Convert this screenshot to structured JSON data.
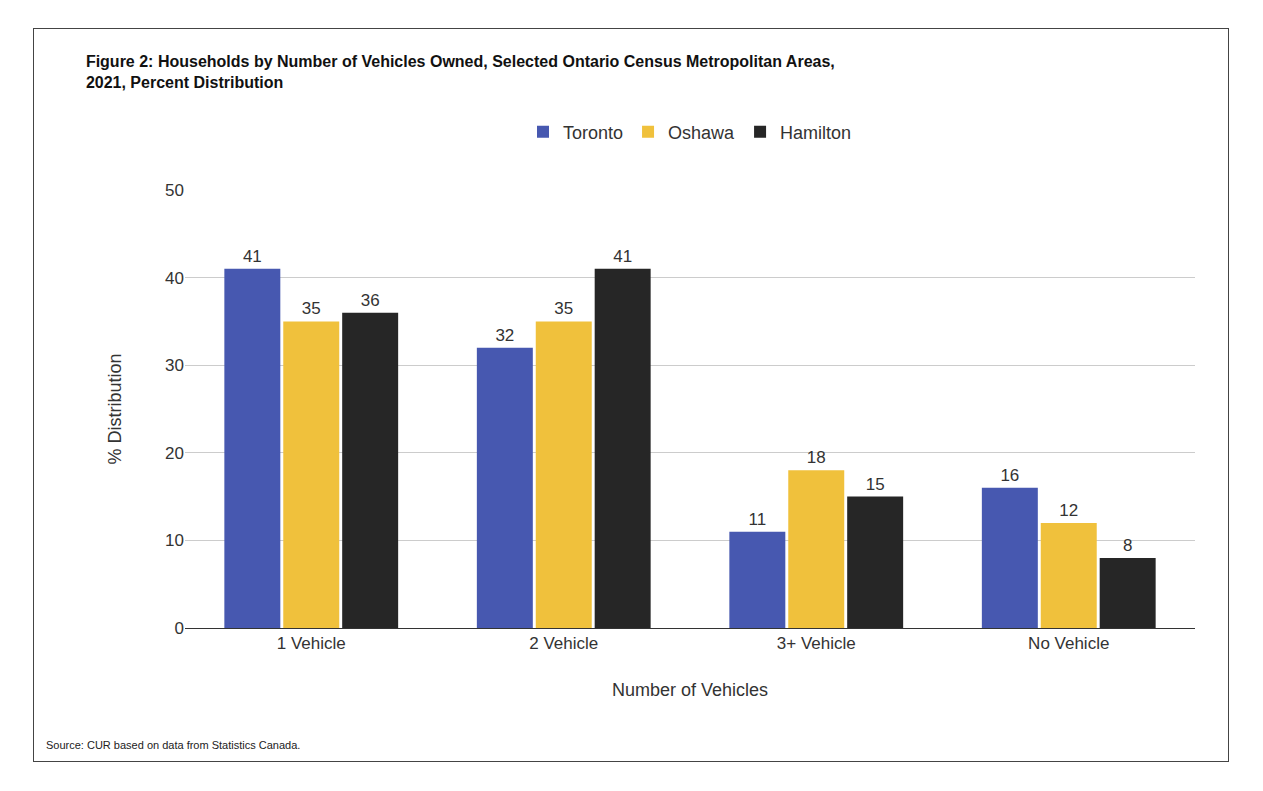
{
  "chart_data": {
    "type": "bar",
    "title": "Figure 2: Households by Number of Vehicles Owned, Selected Ontario Census Metropolitan Areas, 2021, Percent Distribution",
    "x_label": "Number of Vehicles",
    "y_label": "% Distribution",
    "annotations": [
      "Source: CUR based on data from Statistics Canada."
    ],
    "categories": [
      "1 Vehicle",
      "2 Vehicle",
      "3+ Vehicle",
      "No Vehicle"
    ],
    "series": [
      {
        "name": "Toronto",
        "color": "#4758b0",
        "values": [
          41,
          32,
          11,
          16
        ]
      },
      {
        "name": "Oshawa",
        "color": "#f0c13c",
        "values": [
          35,
          35,
          18,
          12
        ]
      },
      {
        "name": "Hamilton",
        "color": "#262626",
        "values": [
          36,
          41,
          15,
          8
        ]
      }
    ],
    "ylim": [
      0,
      50
    ],
    "yticks": [
      0,
      10,
      20,
      30,
      40,
      50
    ],
    "grid": true,
    "legend": "top",
    "data_labels": true
  }
}
